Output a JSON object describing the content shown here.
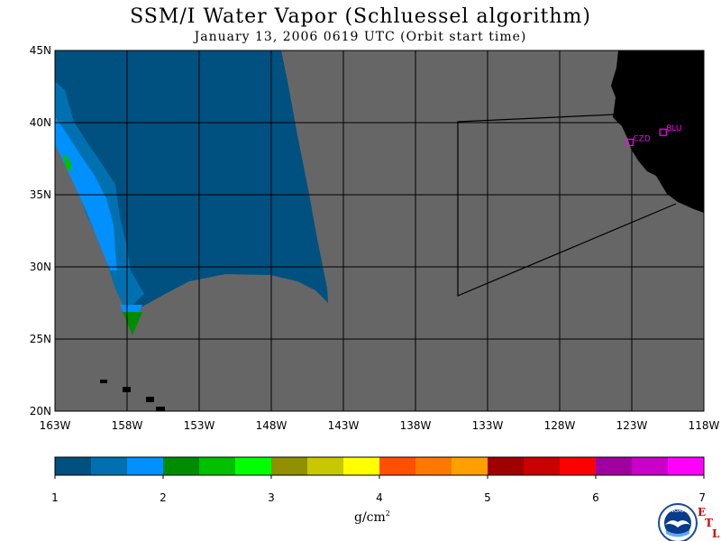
{
  "title": "SSM/I Water Vapor (Schluessel algorithm)",
  "subtitle": "January 13, 2006  0619 UTC  (Orbit start time)",
  "map": {
    "lon_range": [
      -163,
      -118
    ],
    "lat_range": [
      20,
      45
    ],
    "lat_labels": [
      "45N",
      "40N",
      "35N",
      "30N",
      "25N",
      "20N"
    ],
    "lon_labels": [
      "163W",
      "158W",
      "153W",
      "148W",
      "143W",
      "138W",
      "133W",
      "128W",
      "123W",
      "118W"
    ],
    "colors": {
      "nodata": "#666666",
      "land": "#000000",
      "grid": "#000000"
    }
  },
  "sites": [
    {
      "code": "CZD",
      "lon": -123.1,
      "lat": 38.6
    },
    {
      "code": "BLU",
      "lon": -120.8,
      "lat": 39.3
    }
  ],
  "colorbar": {
    "unit": "g/cm",
    "unit_exp": "2",
    "tick_labels": [
      "1",
      "2",
      "3",
      "4",
      "5",
      "6",
      "7"
    ],
    "colors": [
      "#005080",
      "#0070b0",
      "#0090ff",
      "#008c00",
      "#00c000",
      "#00ff00",
      "#909000",
      "#c8c800",
      "#ffff00",
      "#ff5000",
      "#ff7800",
      "#ffa000",
      "#a00000",
      "#c80000",
      "#ff0000",
      "#a000a0",
      "#c800c8",
      "#ff00ff"
    ]
  },
  "logo": {
    "text": "NOAA",
    "etl": [
      "E",
      "T",
      "L"
    ]
  }
}
